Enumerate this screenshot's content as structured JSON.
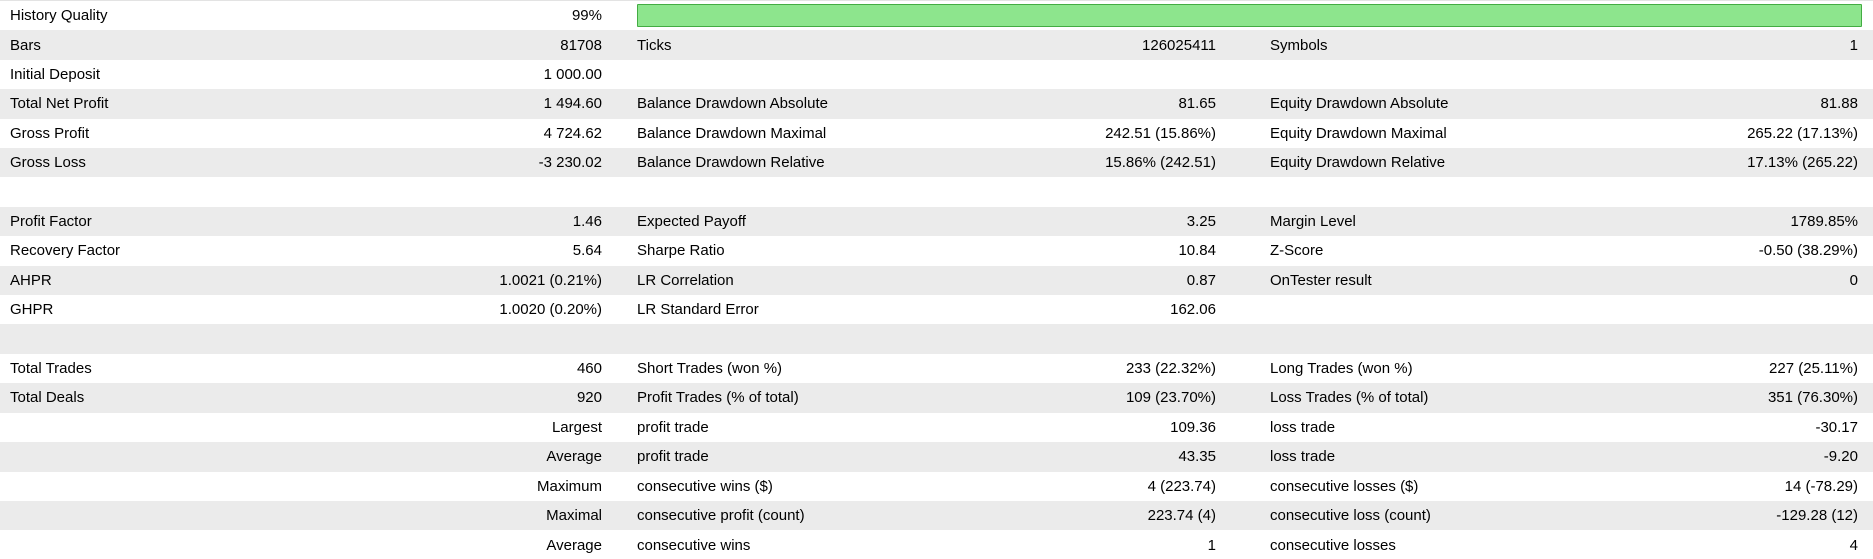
{
  "app": "Strategy Tester Backtest Report",
  "colors": {
    "progress-green": "#8de58d",
    "progress-green-border": "#43ac43",
    "row-alt": "#ebebeb"
  },
  "rows": [
    {
      "c1l": "History Quality",
      "c1v": "99%"
    },
    {
      "c1l": "Bars",
      "c1v": "81708",
      "c2l": "Ticks",
      "c2v": "126025411",
      "c3l": "Symbols",
      "c3v": "1"
    },
    {
      "c1l": "Initial Deposit",
      "c1v": "1 000.00"
    },
    {
      "c1l": "Total Net Profit",
      "c1v": "1 494.60",
      "c2l": "Balance Drawdown Absolute",
      "c2v": "81.65",
      "c3l": "Equity Drawdown Absolute",
      "c3v": "81.88"
    },
    {
      "c1l": "Gross Profit",
      "c1v": "4 724.62",
      "c2l": "Balance Drawdown Maximal",
      "c2v": "242.51 (15.86%)",
      "c3l": "Equity Drawdown Maximal",
      "c3v": "265.22 (17.13%)"
    },
    {
      "c1l": "Gross Loss",
      "c1v": "-3 230.02",
      "c2l": "Balance Drawdown Relative",
      "c2v": "15.86% (242.51)",
      "c3l": "Equity Drawdown Relative",
      "c3v": "17.13% (265.22)"
    },
    {},
    {
      "c1l": "Profit Factor",
      "c1v": "1.46",
      "c2l": "Expected Payoff",
      "c2v": "3.25",
      "c3l": "Margin Level",
      "c3v": "1789.85%"
    },
    {
      "c1l": "Recovery Factor",
      "c1v": "5.64",
      "c2l": "Sharpe Ratio",
      "c2v": "10.84",
      "c3l": "Z-Score",
      "c3v": "-0.50 (38.29%)"
    },
    {
      "c1l": "AHPR",
      "c1v": "1.0021 (0.21%)",
      "c2l": "LR Correlation",
      "c2v": "0.87",
      "c3l": "OnTester result",
      "c3v": "0"
    },
    {
      "c1l": "GHPR",
      "c1v": "1.0020 (0.20%)",
      "c2l": "LR Standard Error",
      "c2v": "162.06"
    },
    {},
    {
      "c1l": "Total Trades",
      "c1v": "460",
      "c2l": "Short Trades (won %)",
      "c2v": "233 (22.32%)",
      "c3l": "Long Trades (won %)",
      "c3v": "227 (25.11%)"
    },
    {
      "c1l": "Total Deals",
      "c1v": "920",
      "c2l": "Profit Trades (% of total)",
      "c2v": "109 (23.70%)",
      "c3l": "Loss Trades (% of total)",
      "c3v": "351 (76.30%)"
    },
    {
      "c1v": "Largest",
      "c2l": "profit trade",
      "c2v": "109.36",
      "c3l": "loss trade",
      "c3v": "-30.17"
    },
    {
      "c1v": "Average",
      "c2l": "profit trade",
      "c2v": "43.35",
      "c3l": "loss trade",
      "c3v": "-9.20"
    },
    {
      "c1v": "Maximum",
      "c2l": "consecutive wins ($)",
      "c2v": "4 (223.74)",
      "c3l": "consecutive losses ($)",
      "c3v": "14 (-78.29)"
    },
    {
      "c1v": "Maximal",
      "c2l": "consecutive profit (count)",
      "c2v": "223.74 (4)",
      "c3l": "consecutive loss (count)",
      "c3v": "-129.28 (12)"
    },
    {
      "c1v": "Average",
      "c2l": "consecutive wins",
      "c2v": "1",
      "c3l": "consecutive losses",
      "c3v": "4"
    }
  ]
}
